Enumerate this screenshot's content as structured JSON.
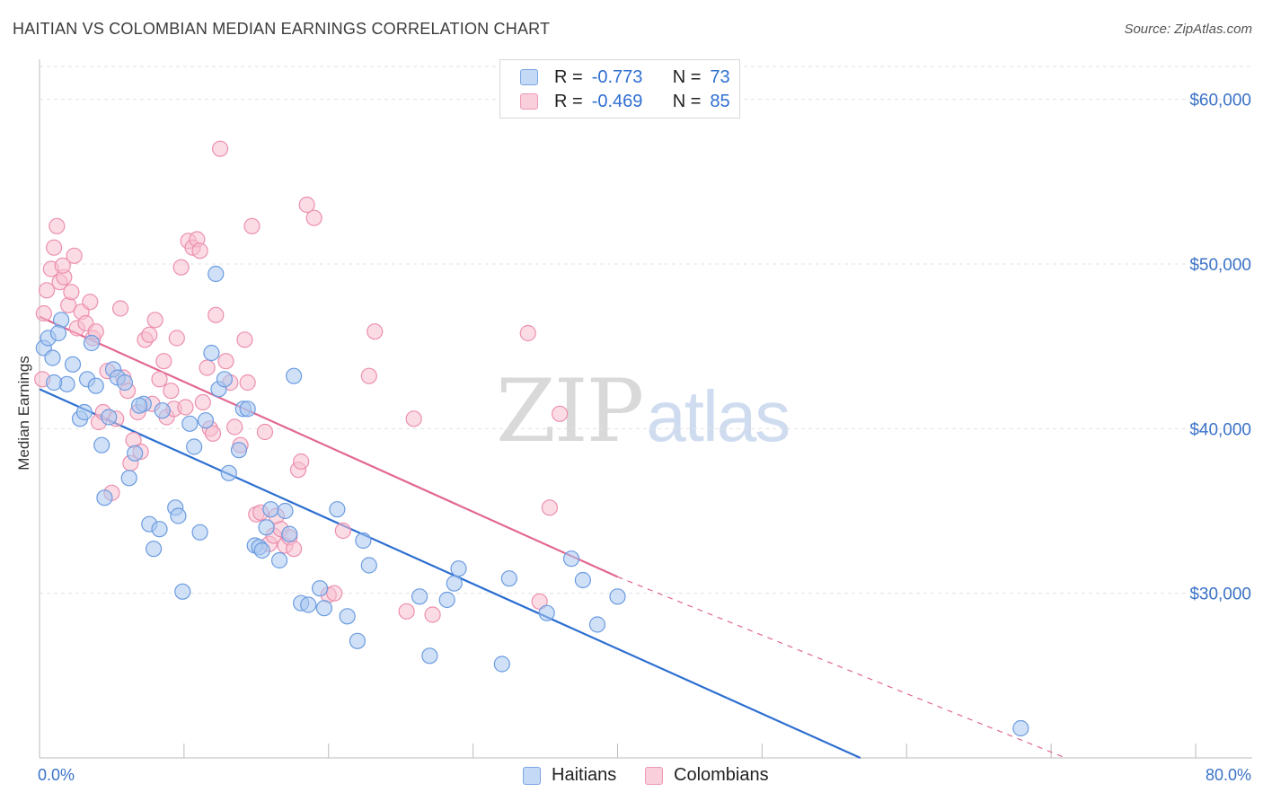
{
  "header": {
    "title": "HAITIAN VS COLOMBIAN MEDIAN EARNINGS CORRELATION CHART",
    "source": "Source: ZipAtlas.com"
  },
  "legend": {
    "haitians": {
      "r_label": "R =",
      "r_value": "-0.773",
      "n_label": "N =",
      "n_value": "73"
    },
    "colombians": {
      "r_label": "R =",
      "r_value": "-0.469",
      "n_label": "N =",
      "n_value": "85"
    }
  },
  "bottom_legend": {
    "haitians": "Haitians",
    "colombians": "Colombians"
  },
  "watermark": {
    "zip": "ZIP",
    "atlas": "atlas"
  },
  "colors": {
    "haitians_fill": "#a9c8f0",
    "haitians_stroke": "#6b9be0",
    "haitians_line": "#2d6fd1",
    "colombians_fill": "#f7bfd0",
    "colombians_stroke": "#ec8fae",
    "colombians_line": "#e26791",
    "grid": "#e3e3e3",
    "axis_text": "#3a72c8"
  },
  "chart_data": {
    "type": "scatter",
    "title": "HAITIAN VS COLOMBIAN MEDIAN EARNINGS CORRELATION CHART",
    "xlabel": "",
    "ylabel": "Median Earnings",
    "xlim": [
      0,
      80
    ],
    "ylim": [
      20000,
      62000
    ],
    "x_tick_labels": [
      "0.0%",
      "80.0%"
    ],
    "y_ticks": [
      30000,
      40000,
      50000,
      60000
    ],
    "y_tick_labels": [
      "$30,000",
      "$40,000",
      "$50,000",
      "$60,000"
    ],
    "grid": true,
    "legend_position": "top-center",
    "series": [
      {
        "name": "Haitians",
        "R": -0.773,
        "N": 73,
        "trend": {
          "x0": 0,
          "y0": 42400,
          "x1": 56.8,
          "y1": 20000,
          "dashed_to": null
        },
        "points": [
          [
            0.3,
            44900
          ],
          [
            0.6,
            45500
          ],
          [
            0.9,
            44300
          ],
          [
            1.5,
            46600
          ],
          [
            1.3,
            45800
          ],
          [
            1.9,
            42700
          ],
          [
            2.3,
            43900
          ],
          [
            2.8,
            40600
          ],
          [
            3.1,
            41000
          ],
          [
            3.3,
            43000
          ],
          [
            3.9,
            42600
          ],
          [
            3.6,
            45200
          ],
          [
            4.3,
            39000
          ],
          [
            4.5,
            35800
          ],
          [
            4.8,
            40700
          ],
          [
            5.1,
            43600
          ],
          [
            5.4,
            43100
          ],
          [
            5.9,
            42800
          ],
          [
            6.2,
            37000
          ],
          [
            6.6,
            38500
          ],
          [
            7.2,
            41500
          ],
          [
            7.6,
            34200
          ],
          [
            7.9,
            32700
          ],
          [
            8.3,
            33900
          ],
          [
            8.5,
            41100
          ],
          [
            9.4,
            35200
          ],
          [
            9.6,
            34700
          ],
          [
            9.9,
            30100
          ],
          [
            10.4,
            40300
          ],
          [
            10.7,
            38900
          ],
          [
            11.1,
            33700
          ],
          [
            11.5,
            40500
          ],
          [
            11.9,
            44600
          ],
          [
            12.2,
            49400
          ],
          [
            12.4,
            42400
          ],
          [
            12.8,
            43000
          ],
          [
            13.1,
            37300
          ],
          [
            13.8,
            38700
          ],
          [
            14.1,
            41200
          ],
          [
            14.4,
            41200
          ],
          [
            14.9,
            32900
          ],
          [
            15.2,
            32800
          ],
          [
            15.4,
            32600
          ],
          [
            15.7,
            34000
          ],
          [
            16.0,
            35100
          ],
          [
            16.6,
            32000
          ],
          [
            17.0,
            35000
          ],
          [
            17.3,
            33600
          ],
          [
            17.6,
            43200
          ],
          [
            18.1,
            29400
          ],
          [
            18.6,
            29300
          ],
          [
            19.4,
            30300
          ],
          [
            19.7,
            29100
          ],
          [
            20.6,
            35100
          ],
          [
            21.3,
            28600
          ],
          [
            22.0,
            27100
          ],
          [
            22.4,
            33200
          ],
          [
            22.8,
            31700
          ],
          [
            26.3,
            29800
          ],
          [
            27.0,
            26200
          ],
          [
            28.2,
            29600
          ],
          [
            28.7,
            30600
          ],
          [
            29.0,
            31500
          ],
          [
            32.0,
            25700
          ],
          [
            32.5,
            30900
          ],
          [
            35.1,
            28800
          ],
          [
            36.8,
            32100
          ],
          [
            37.6,
            30800
          ],
          [
            38.6,
            28100
          ],
          [
            40.0,
            29800
          ],
          [
            67.9,
            21800
          ],
          [
            1.0,
            42800
          ],
          [
            6.9,
            41400
          ]
        ]
      },
      {
        "name": "Colombians",
        "R": -0.469,
        "N": 85,
        "trend": {
          "x0": 0,
          "y0": 46800,
          "x1": 40.0,
          "y1": 31000,
          "dashed_x_end": 71.0,
          "dashed_y_end": 20000
        },
        "points": [
          [
            0.2,
            43000
          ],
          [
            0.3,
            47000
          ],
          [
            0.5,
            48400
          ],
          [
            0.8,
            49700
          ],
          [
            1.0,
            51000
          ],
          [
            1.2,
            52300
          ],
          [
            1.4,
            48900
          ],
          [
            1.7,
            49200
          ],
          [
            2.0,
            47500
          ],
          [
            2.4,
            50500
          ],
          [
            2.6,
            46100
          ],
          [
            2.9,
            47100
          ],
          [
            3.2,
            46400
          ],
          [
            3.5,
            47700
          ],
          [
            3.7,
            45500
          ],
          [
            3.9,
            45900
          ],
          [
            4.1,
            40400
          ],
          [
            4.4,
            41000
          ],
          [
            4.7,
            43500
          ],
          [
            5.0,
            36100
          ],
          [
            5.3,
            40600
          ],
          [
            5.6,
            47300
          ],
          [
            5.8,
            43100
          ],
          [
            6.1,
            42300
          ],
          [
            6.3,
            37900
          ],
          [
            6.5,
            39300
          ],
          [
            6.8,
            41000
          ],
          [
            7.0,
            38600
          ],
          [
            7.3,
            45400
          ],
          [
            7.6,
            45700
          ],
          [
            7.8,
            41500
          ],
          [
            8.0,
            46600
          ],
          [
            8.3,
            43000
          ],
          [
            8.6,
            44100
          ],
          [
            8.8,
            40700
          ],
          [
            9.1,
            42300
          ],
          [
            9.3,
            41200
          ],
          [
            9.5,
            45500
          ],
          [
            9.8,
            49800
          ],
          [
            10.1,
            41300
          ],
          [
            10.3,
            51400
          ],
          [
            10.6,
            51000
          ],
          [
            10.9,
            51500
          ],
          [
            11.1,
            50800
          ],
          [
            11.3,
            41600
          ],
          [
            11.6,
            43700
          ],
          [
            11.8,
            40000
          ],
          [
            12.0,
            39700
          ],
          [
            12.2,
            46900
          ],
          [
            12.5,
            57000
          ],
          [
            12.9,
            44100
          ],
          [
            13.2,
            42800
          ],
          [
            13.5,
            40100
          ],
          [
            13.9,
            39000
          ],
          [
            14.2,
            45400
          ],
          [
            14.4,
            42800
          ],
          [
            14.7,
            52300
          ],
          [
            15.0,
            34800
          ],
          [
            15.3,
            34900
          ],
          [
            15.6,
            39800
          ],
          [
            15.9,
            33000
          ],
          [
            16.2,
            33500
          ],
          [
            16.4,
            34700
          ],
          [
            16.7,
            33900
          ],
          [
            17.0,
            32900
          ],
          [
            17.3,
            33400
          ],
          [
            17.6,
            32700
          ],
          [
            17.9,
            37500
          ],
          [
            18.1,
            38000
          ],
          [
            18.5,
            53600
          ],
          [
            19.0,
            52800
          ],
          [
            20.0,
            29900
          ],
          [
            20.4,
            30000
          ],
          [
            21.0,
            33800
          ],
          [
            22.8,
            43200
          ],
          [
            23.2,
            45900
          ],
          [
            25.4,
            28900
          ],
          [
            25.9,
            40600
          ],
          [
            27.2,
            28700
          ],
          [
            33.8,
            45800
          ],
          [
            34.6,
            29500
          ],
          [
            35.3,
            35200
          ],
          [
            36.0,
            40900
          ],
          [
            1.6,
            49900
          ],
          [
            2.2,
            48300
          ]
        ]
      }
    ]
  }
}
